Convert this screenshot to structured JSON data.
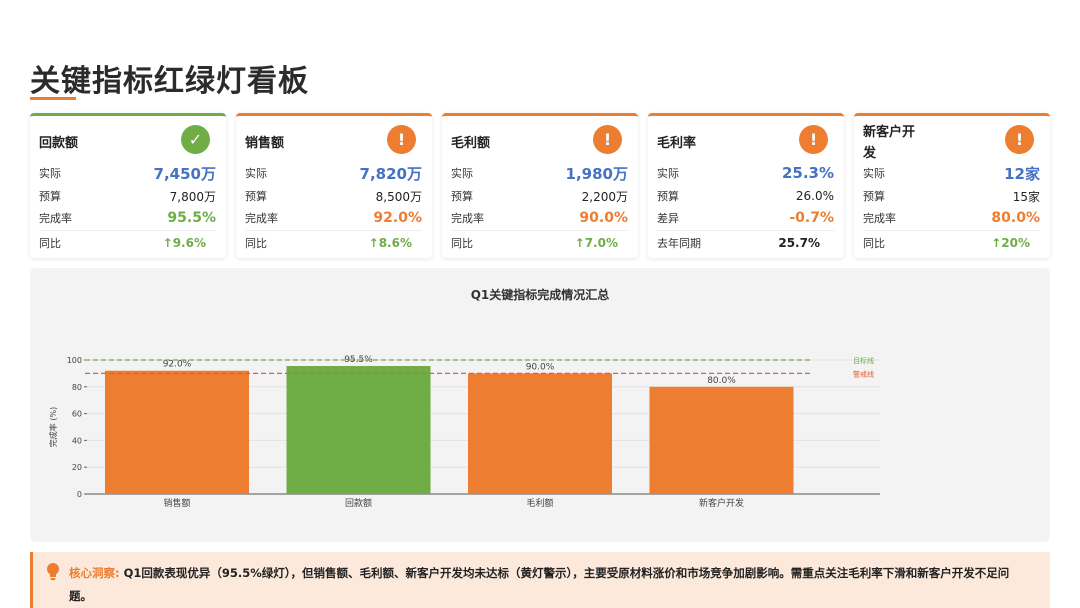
{
  "page": {
    "title": "关键指标红绿灯看板"
  },
  "colors": {
    "green": "#70AD47",
    "orange": "#ED7D31",
    "blue": "#4472C4",
    "target_line": "#70AD47",
    "warn_line": "#E0603B"
  },
  "cards": [
    {
      "name": "回款额",
      "status": "ok",
      "status_icon": "check-icon",
      "status_glyph": "✓",
      "rows": [
        {
          "label": "实际",
          "value": "7,450万"
        },
        {
          "label": "预算",
          "value": "7,800万"
        },
        {
          "label": "完成率",
          "value": "95.5%"
        },
        {
          "label": "同比",
          "value": "↑9.6%"
        }
      ]
    },
    {
      "name": "销售额",
      "status": "warn",
      "status_icon": "exclamation-icon",
      "status_glyph": "!",
      "rows": [
        {
          "label": "实际",
          "value": "7,820万"
        },
        {
          "label": "预算",
          "value": "8,500万"
        },
        {
          "label": "完成率",
          "value": "92.0%"
        },
        {
          "label": "同比",
          "value": "↑8.6%"
        }
      ]
    },
    {
      "name": "毛利额",
      "status": "warn",
      "status_icon": "exclamation-icon",
      "status_glyph": "!",
      "rows": [
        {
          "label": "实际",
          "value": "1,980万"
        },
        {
          "label": "预算",
          "value": "2,200万"
        },
        {
          "label": "完成率",
          "value": "90.0%"
        },
        {
          "label": "同比",
          "value": "↑7.0%"
        }
      ]
    },
    {
      "name": "毛利率",
      "status": "warn",
      "status_icon": "exclamation-icon",
      "status_glyph": "!",
      "rows": [
        {
          "label": "实际",
          "value": "25.3%"
        },
        {
          "label": "预算",
          "value": "26.0%"
        },
        {
          "label": "差异",
          "value": "-0.7%"
        },
        {
          "label": "去年同期",
          "value": "25.7%"
        }
      ]
    },
    {
      "name": "新客户开发",
      "status": "warn",
      "status_icon": "exclamation-icon",
      "status_glyph": "!",
      "rows": [
        {
          "label": "实际",
          "value": "12家"
        },
        {
          "label": "预算",
          "value": "15家"
        },
        {
          "label": "完成率",
          "value": "80.0%"
        },
        {
          "label": "同比",
          "value": "↑20%"
        }
      ]
    }
  ],
  "chart_data": {
    "type": "bar",
    "title": "Q1关键指标完成情况汇总",
    "ylabel": "完成率 (%)",
    "xlabel": "",
    "categories": [
      "销售额",
      "回款额",
      "毛利额",
      "新客户开发"
    ],
    "values": [
      92.0,
      95.5,
      90.0,
      80.0
    ],
    "data_labels": [
      "92.0%",
      "95.5%",
      "90.0%",
      "80.0%"
    ],
    "bar_colors": [
      "#ED7D31",
      "#70AD47",
      "#ED7D31",
      "#ED7D31"
    ],
    "ylim": [
      0,
      100
    ],
    "yticks": [
      0,
      20,
      40,
      60,
      80,
      100
    ],
    "grid": true,
    "reference_lines": [
      {
        "name": "目标线",
        "value": 100,
        "color": "#70AD47",
        "style": "dashed"
      },
      {
        "name": "警戒线",
        "value": 90,
        "color": "#E0603B",
        "style": "dashed"
      }
    ]
  },
  "insight": {
    "icon": "lightbulb-icon",
    "label": "核心洞察:",
    "text": "Q1回款表现优异（95.5%绿灯），但销售额、毛利额、新客户开发均未达标（黄灯警示），主要受原材料涨价和市场竞争加剧影响。需重点关注毛利率下滑和新客户开发不足问题。"
  }
}
